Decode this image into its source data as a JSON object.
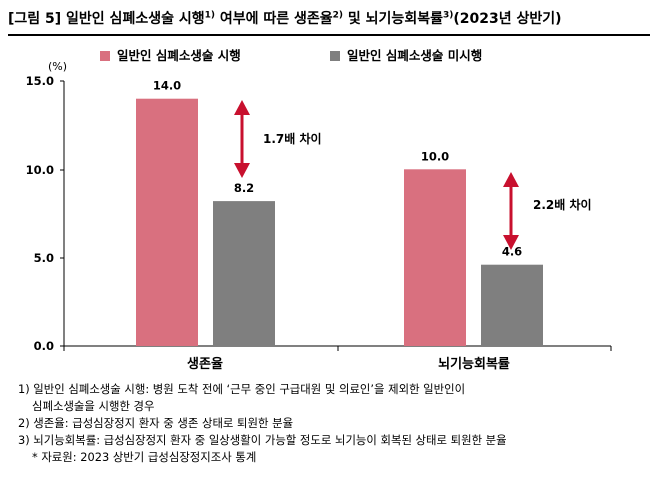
{
  "title": {
    "prefix": "[그림 5] 일반인 심폐소생술 시행",
    "sup1": "1)",
    "mid": " 여부에 따른 생존율",
    "sup2": "2)",
    "mid2": " 및 뇌기능회복률",
    "sup3": "3)",
    "suffix": "(2023년 상반기)"
  },
  "colors": {
    "pink": "#d9707f",
    "gray": "#7f7f7f",
    "arrow": "#c8102e",
    "axis": "#000000"
  },
  "chart_data": {
    "type": "bar",
    "categories": [
      "생존율",
      "뇌기능회복률"
    ],
    "series": [
      {
        "name": "일반인 심폐소생술 시행",
        "values": [
          14.0,
          10.0
        ],
        "color": "#d9707f"
      },
      {
        "name": "일반인 심폐소생술 미시행",
        "values": [
          8.2,
          4.6
        ],
        "color": "#7f7f7f"
      }
    ],
    "value_labels": [
      [
        "14.0",
        "10.0"
      ],
      [
        "8.2",
        "4.6"
      ]
    ],
    "annotations": [
      "1.7배 차이",
      "2.2배 차이"
    ],
    "ylabel": "(%)",
    "yticks": [
      "0.0",
      "5.0",
      "10.0",
      "15.0"
    ],
    "ylim": [
      0,
      15
    ],
    "legend": "top",
    "grid": false
  },
  "notes": {
    "n1a": "1) 일반인 심폐소생술 시행: 병원 도착 전에 ‘근무 중인 구급대원 및 의료인’을 제외한 일반인이",
    "n1b": "심폐소생술을 시행한 경우",
    "n2": "2) 생존율: 급성심장정지 환자 중 생존 상태로 퇴원한 분율",
    "n3": "3) 뇌기능회복률: 급성심장정지 환자 중 일상생활이 가능할 정도로 뇌기능이 회복된 상태로 퇴원한 분율",
    "source": "* 자료원: 2023 상반기 급성심장정지조사 통계"
  }
}
